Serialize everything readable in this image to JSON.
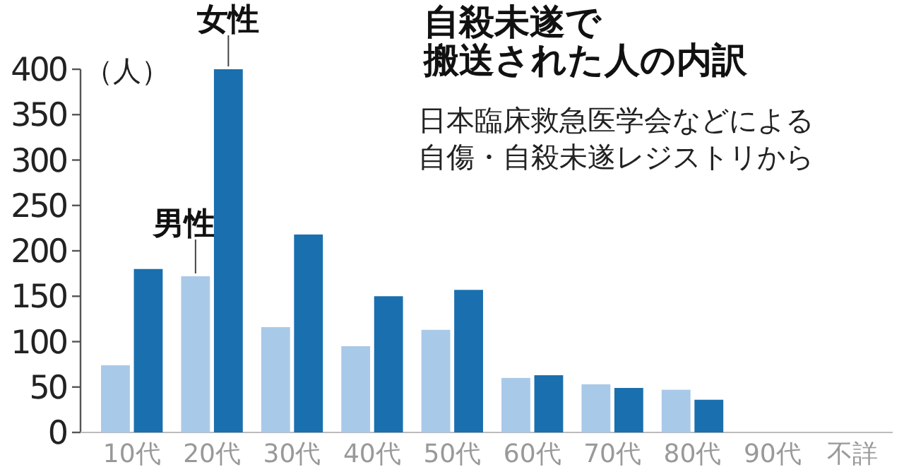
{
  "chart_data": {
    "type": "bar",
    "title": "自殺未遂で搬送された人の内訳",
    "subtitle": "日本臨床救急医学会などによる自傷・自殺未遂レジストリから",
    "ylabel": "（人）",
    "categories": [
      "10代",
      "20代",
      "30代",
      "40代",
      "50代",
      "60代",
      "70代",
      "80代",
      "90代",
      "不詳"
    ],
    "series": [
      {
        "name": "男性",
        "color": "#a9c9e8",
        "values": [
          74,
          172,
          116,
          95,
          113,
          60,
          53,
          47,
          null,
          null
        ]
      },
      {
        "name": "女性",
        "color": "#1a6fae",
        "values": [
          180,
          400,
          218,
          150,
          157,
          63,
          49,
          36,
          null,
          null
        ]
      }
    ],
    "ylim": [
      0,
      400
    ],
    "yticks": [
      0,
      50,
      100,
      150,
      200,
      250,
      300,
      350,
      400
    ],
    "grid": false
  }
}
